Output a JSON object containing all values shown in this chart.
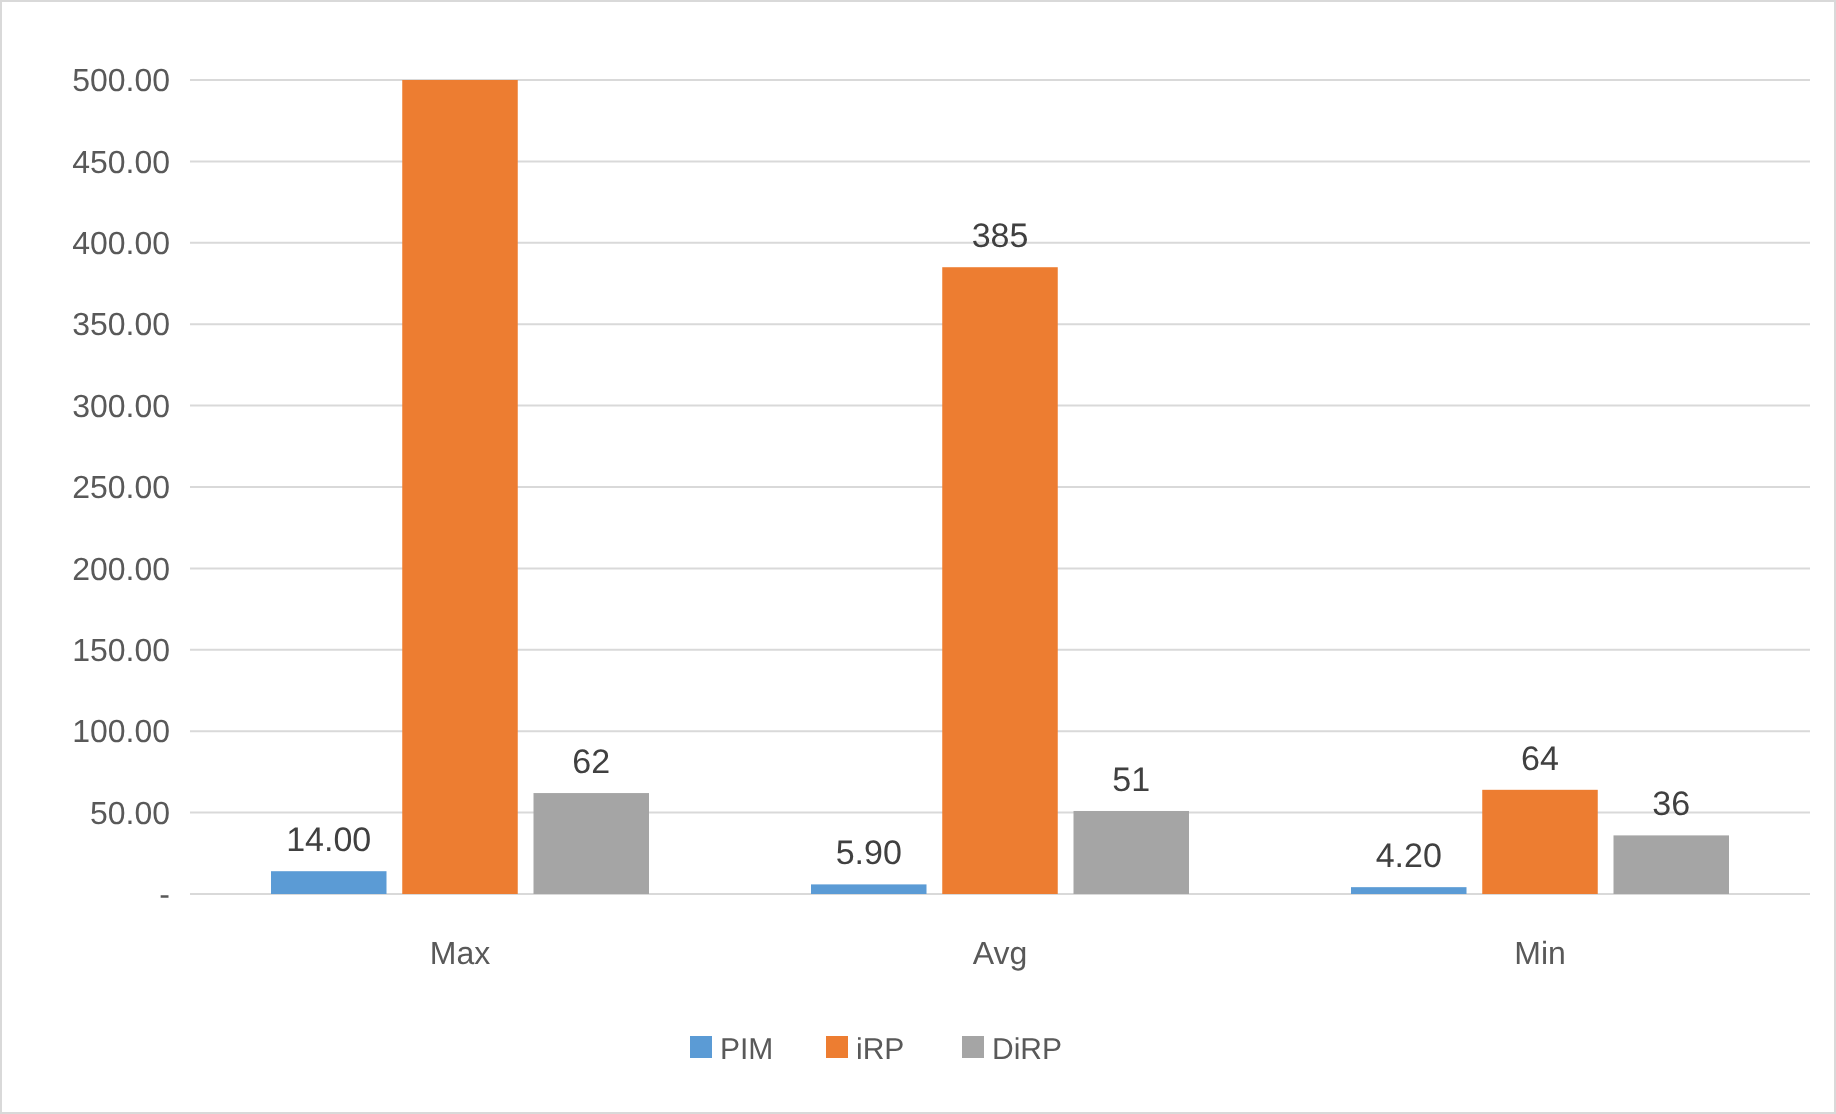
{
  "chart_data": {
    "type": "bar",
    "categories": [
      "Max",
      "Avg",
      "Min"
    ],
    "series": [
      {
        "name": "PIM",
        "color": "#5b9bd5",
        "values": [
          14,
          5.9,
          4.2
        ],
        "value_labels": [
          "14.00",
          "5.90",
          "4.20"
        ]
      },
      {
        "name": "iRP",
        "color": "#ed7d31",
        "values": [
          500,
          385,
          64
        ],
        "value_labels": [
          null,
          "385",
          "64"
        ]
      },
      {
        "name": "DiRP",
        "color": "#a5a5a5",
        "values": [
          62,
          51,
          36
        ],
        "value_labels": [
          "62",
          "51",
          "36"
        ]
      }
    ],
    "ylim": [
      0,
      500
    ],
    "yticks": [
      {
        "value": 0,
        "label": "-"
      },
      {
        "value": 50,
        "label": "50.00"
      },
      {
        "value": 100,
        "label": "100.00"
      },
      {
        "value": 150,
        "label": "150.00"
      },
      {
        "value": 200,
        "label": "200.00"
      },
      {
        "value": 250,
        "label": "250.00"
      },
      {
        "value": 300,
        "label": "300.00"
      },
      {
        "value": 350,
        "label": "350.00"
      },
      {
        "value": 400,
        "label": "400.00"
      },
      {
        "value": 450,
        "label": "450.00"
      },
      {
        "value": 500,
        "label": "500.00"
      }
    ],
    "grid": "y",
    "legend": "bottom"
  }
}
